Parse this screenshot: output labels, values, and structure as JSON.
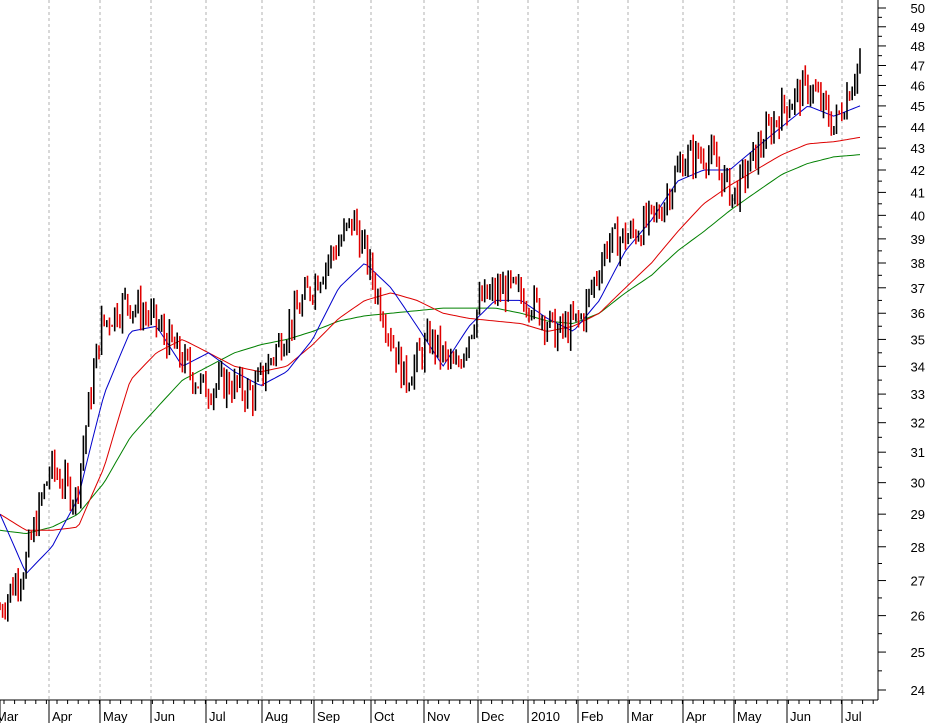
{
  "chart_data": {
    "type": "candlestick",
    "title": "",
    "xlabel": "",
    "ylabel": "",
    "ylim": [
      24,
      50
    ],
    "y_scale": "log",
    "grid": {
      "vertical_dotted": true,
      "horizontal": false
    },
    "y_axis_position": "right",
    "yticks": [
      24,
      25,
      26,
      27,
      28,
      29,
      30,
      31,
      32,
      33,
      34,
      35,
      36,
      37,
      38,
      39,
      40,
      41,
      42,
      43,
      44,
      45,
      46,
      47,
      48,
      49,
      50
    ],
    "x_month_labels": [
      "Mar",
      "Apr",
      "May",
      "Jun",
      "Jul",
      "Aug",
      "Sep",
      "Oct",
      "Nov",
      "Dec",
      "2010",
      "Feb",
      "Mar",
      "Apr",
      "May",
      "Jun",
      "Jul"
    ],
    "colors": {
      "up_bar": "#000000",
      "down_bar": "#e00000",
      "ma_short": "#0000cc",
      "ma_mid": "#dd0000",
      "ma_long": "#008000",
      "grid": "#b0b0b0"
    },
    "series_keypoints": [
      {
        "name": "price_close",
        "points": [
          [
            "Mar",
            26.2
          ],
          [
            "Apr",
            27.5
          ],
          [
            "mid-Apr",
            30.5
          ],
          [
            "May",
            29.5
          ],
          [
            "mid-May",
            35.5
          ],
          [
            "Jun",
            36.5
          ],
          [
            "mid-Jun",
            35.8
          ],
          [
            "Jul",
            34.5
          ],
          [
            "mid-Jul",
            33.2
          ],
          [
            "Aug",
            33.4
          ],
          [
            "mid-Aug",
            33.0
          ],
          [
            "Sep",
            34.8
          ],
          [
            "mid-Sep",
            36.5
          ],
          [
            "Oct",
            38.2
          ],
          [
            "mid-Oct",
            39.8
          ],
          [
            "Nov",
            36.5
          ],
          [
            "early-Nov",
            33.5
          ],
          [
            "mid-Nov",
            35.0
          ],
          [
            "Dec",
            33.8
          ],
          [
            "mid-Dec",
            36.5
          ],
          [
            "2010",
            37.0
          ],
          [
            "mid-Jan",
            36.5
          ],
          [
            "Feb",
            35.2
          ],
          [
            "mid-Feb",
            35.8
          ],
          [
            "Mar",
            38.8
          ],
          [
            "mid-Mar",
            39.2
          ],
          [
            "Apr",
            40.0
          ],
          [
            "mid-Apr",
            42.5
          ],
          [
            "May",
            42.8
          ],
          [
            "mid-May",
            40.8
          ],
          [
            "Jun",
            43.0
          ],
          [
            "mid-Jun",
            45.0
          ],
          [
            "late-Jun",
            46.0
          ],
          [
            "Jul",
            44.0
          ],
          [
            "mid-Jul",
            47.3
          ]
        ]
      },
      {
        "name": "ma_short",
        "points": [
          [
            "Mar",
            29.0
          ],
          [
            "Apr",
            27.2
          ],
          [
            "mid-Apr",
            28.0
          ],
          [
            "May",
            29.5
          ],
          [
            "mid-May",
            33.0
          ],
          [
            "Jun",
            35.3
          ],
          [
            "mid-Jun",
            35.5
          ],
          [
            "Jul",
            34.0
          ],
          [
            "mid-Jul",
            34.5
          ],
          [
            "Aug",
            33.8
          ],
          [
            "mid-Aug",
            33.3
          ],
          [
            "Sep",
            33.8
          ],
          [
            "mid-Sep",
            35.0
          ],
          [
            "Oct",
            37.0
          ],
          [
            "mid-Oct",
            38.0
          ],
          [
            "Nov",
            37.0
          ],
          [
            "mid-Nov",
            35.5
          ],
          [
            "Dec",
            34.0
          ],
          [
            "mid-Dec",
            35.5
          ],
          [
            "2010",
            36.5
          ],
          [
            "mid-Jan",
            36.5
          ],
          [
            "Feb",
            35.8
          ],
          [
            "mid-Feb",
            35.3
          ],
          [
            "Mar",
            36.5
          ],
          [
            "mid-Mar",
            38.5
          ],
          [
            "Apr",
            39.8
          ],
          [
            "mid-Apr",
            41.5
          ],
          [
            "May",
            42.0
          ],
          [
            "mid-May",
            42.0
          ],
          [
            "Jun",
            43.0
          ],
          [
            "mid-Jun",
            44.0
          ],
          [
            "late-Jun",
            45.0
          ],
          [
            "Jul",
            44.5
          ],
          [
            "mid-Jul",
            45.0
          ]
        ]
      },
      {
        "name": "ma_mid",
        "points": [
          [
            "Mar",
            29.0
          ],
          [
            "Apr",
            28.5
          ],
          [
            "mid-Apr",
            28.5
          ],
          [
            "May",
            28.6
          ],
          [
            "mid-May",
            30.5
          ],
          [
            "Jun",
            33.5
          ],
          [
            "mid-Jun",
            34.5
          ],
          [
            "Jul",
            35.0
          ],
          [
            "mid-Jul",
            34.5
          ],
          [
            "Aug",
            34.0
          ],
          [
            "mid-Aug",
            33.8
          ],
          [
            "Sep",
            34.0
          ],
          [
            "mid-Sep",
            34.8
          ],
          [
            "Oct",
            35.8
          ],
          [
            "mid-Oct",
            36.5
          ],
          [
            "Nov",
            36.8
          ],
          [
            "mid-Nov",
            36.5
          ],
          [
            "Dec",
            36.0
          ],
          [
            "mid-Dec",
            35.8
          ],
          [
            "2010",
            35.7
          ],
          [
            "mid-Jan",
            35.6
          ],
          [
            "Feb",
            35.3
          ],
          [
            "mid-Feb",
            35.5
          ],
          [
            "Mar",
            36.0
          ],
          [
            "mid-Mar",
            37.0
          ],
          [
            "Apr",
            38.0
          ],
          [
            "mid-Apr",
            39.3
          ],
          [
            "May",
            40.5
          ],
          [
            "mid-May",
            41.3
          ],
          [
            "Jun",
            42.0
          ],
          [
            "mid-Jun",
            42.7
          ],
          [
            "late-Jun",
            43.2
          ],
          [
            "Jul",
            43.3
          ],
          [
            "mid-Jul",
            43.5
          ]
        ]
      },
      {
        "name": "ma_long",
        "points": [
          [
            "Mar",
            28.5
          ],
          [
            "Apr",
            28.4
          ],
          [
            "mid-Apr",
            28.6
          ],
          [
            "May",
            29.0
          ],
          [
            "mid-May",
            30.0
          ],
          [
            "Jun",
            31.5
          ],
          [
            "mid-Jun",
            32.5
          ],
          [
            "Jul",
            33.5
          ],
          [
            "mid-Jul",
            34.0
          ],
          [
            "Aug",
            34.5
          ],
          [
            "mid-Aug",
            34.8
          ],
          [
            "Sep",
            35.0
          ],
          [
            "mid-Sep",
            35.3
          ],
          [
            "Oct",
            35.7
          ],
          [
            "mid-Oct",
            35.9
          ],
          [
            "Nov",
            36.0
          ],
          [
            "mid-Nov",
            36.1
          ],
          [
            "Dec",
            36.2
          ],
          [
            "mid-Dec",
            36.2
          ],
          [
            "2010",
            36.2
          ],
          [
            "mid-Jan",
            36.0
          ],
          [
            "Feb",
            35.7
          ],
          [
            "mid-Feb",
            35.6
          ],
          [
            "Mar",
            36.0
          ],
          [
            "mid-Mar",
            36.8
          ],
          [
            "Apr",
            37.5
          ],
          [
            "mid-Apr",
            38.5
          ],
          [
            "May",
            39.3
          ],
          [
            "mid-May",
            40.2
          ],
          [
            "Jun",
            41.0
          ],
          [
            "mid-Jun",
            41.8
          ],
          [
            "late-Jun",
            42.3
          ],
          [
            "Jul",
            42.6
          ],
          [
            "mid-Jul",
            42.7
          ]
        ]
      }
    ]
  }
}
